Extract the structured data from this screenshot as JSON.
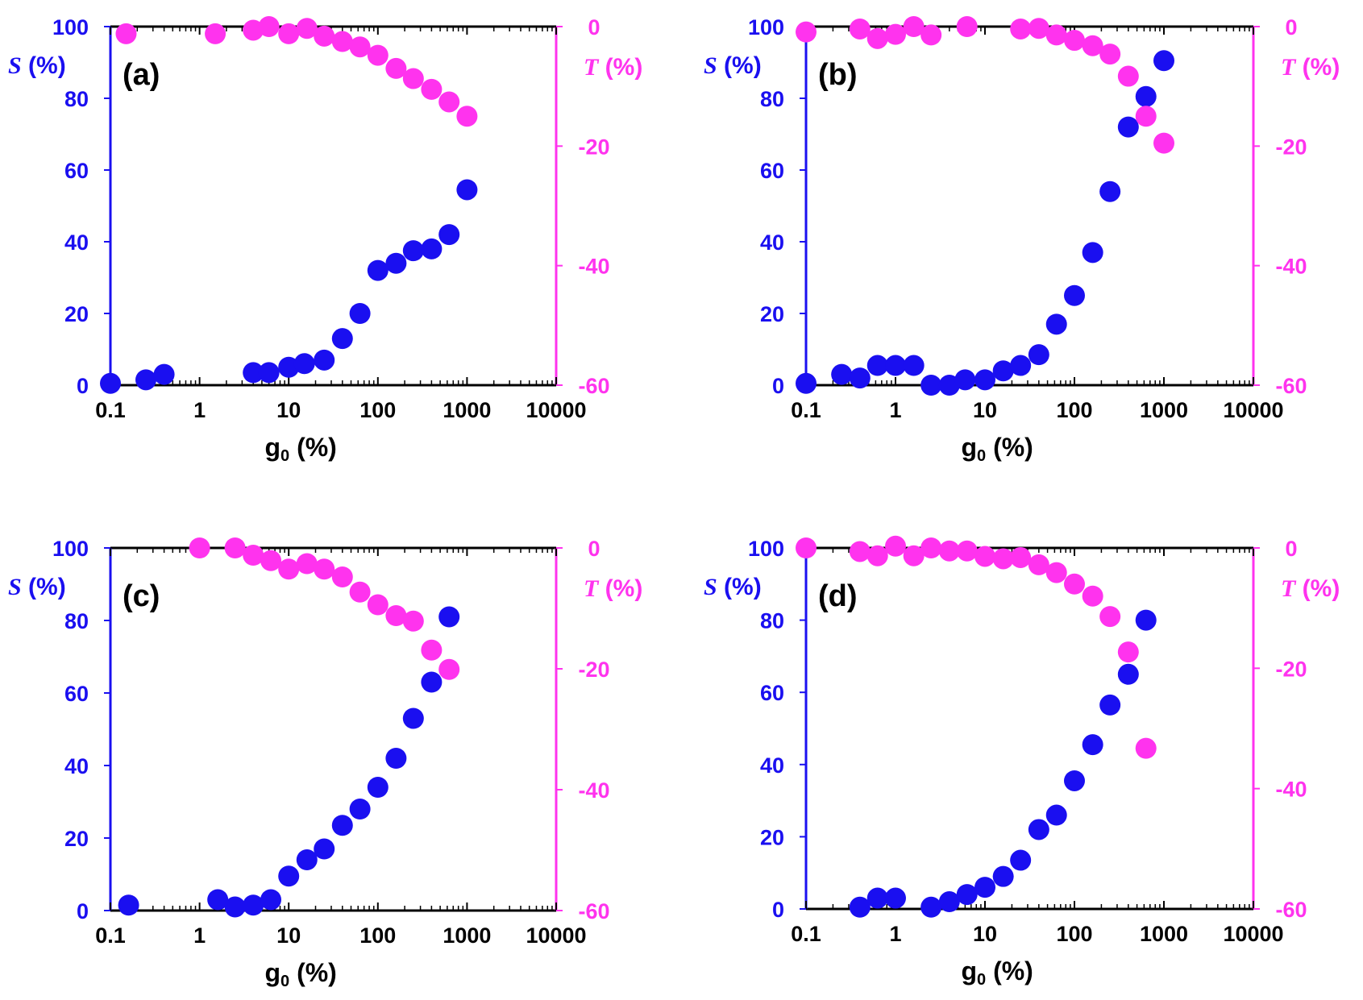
{
  "colors": {
    "s_series": "#1a0ff0",
    "t_series": "#ff33ee",
    "frame": "#000000"
  },
  "shared": {
    "x_ticks": [
      "0.1",
      "1",
      "10",
      "100",
      "1000",
      "10000"
    ],
    "s_ticks": [
      "0",
      "20",
      "40",
      "60",
      "80",
      "100"
    ],
    "t_ticks": [
      "-60",
      "-40",
      "-20",
      "0"
    ],
    "s_symbol": "S",
    "s_unit": " (%)",
    "t_symbol": "T",
    "t_unit": " (%)",
    "x_symbol": "g",
    "x_sub": "0",
    "x_unit": " (%)"
  },
  "chart_data": [
    {
      "type": "scatter",
      "panel_label": "(a)",
      "xscale": "log",
      "xlim": [
        0.1,
        10000
      ],
      "ylim_left": [
        0,
        100
      ],
      "ylim_right": [
        -60,
        0
      ],
      "series": [
        {
          "name": "S",
          "axis": "left",
          "x": [
            0.1,
            0.25,
            0.4,
            4,
            6,
            10,
            15,
            25,
            40,
            63,
            100,
            160,
            250,
            400,
            630,
            1000
          ],
          "values": [
            0.5,
            1.5,
            3,
            3.5,
            3.5,
            5,
            6,
            7,
            13,
            20,
            32,
            34,
            37.5,
            38,
            42,
            54.5
          ]
        },
        {
          "name": "T",
          "axis": "right",
          "x": [
            0.15,
            1.5,
            4,
            6,
            10,
            16,
            25,
            40,
            63,
            100,
            160,
            250,
            400,
            630,
            1000
          ],
          "values": [
            -1.2,
            -1.2,
            -0.6,
            0,
            -1.2,
            -0.3,
            -1.6,
            -2.5,
            -3.4,
            -4.8,
            -7,
            -8.7,
            -10.5,
            -12.6,
            -15
          ]
        }
      ]
    },
    {
      "type": "scatter",
      "panel_label": "(b)",
      "xscale": "log",
      "xlim": [
        0.1,
        10000
      ],
      "ylim_left": [
        0,
        100
      ],
      "ylim_right": [
        -60,
        0
      ],
      "series": [
        {
          "name": "S",
          "axis": "left",
          "x": [
            0.1,
            0.25,
            0.4,
            0.63,
            1,
            1.6,
            2.5,
            4,
            6,
            10,
            16,
            25,
            40,
            63,
            100,
            160,
            250,
            400,
            630,
            1000
          ],
          "values": [
            0.5,
            3,
            2,
            5.5,
            5.5,
            5.5,
            0,
            0,
            1.5,
            1.5,
            4,
            5.5,
            8.5,
            17,
            25,
            37,
            54,
            72,
            80.5,
            90.5
          ]
        },
        {
          "name": "T",
          "axis": "right",
          "x": [
            0.1,
            0.4,
            0.63,
            1,
            1.6,
            2.5,
            6.3,
            25,
            40,
            63,
            100,
            160,
            250,
            400,
            630,
            1000
          ],
          "values": [
            -0.9,
            -0.4,
            -2,
            -1.3,
            0,
            -1.4,
            0,
            -0.4,
            -0.3,
            -1.4,
            -2.3,
            -3.2,
            -4.6,
            -8.3,
            -15,
            -19.5
          ]
        }
      ]
    },
    {
      "type": "scatter",
      "panel_label": "(c)",
      "xscale": "log",
      "xlim": [
        0.1,
        10000
      ],
      "ylim_left": [
        0,
        100
      ],
      "ylim_right": [
        -60,
        0
      ],
      "series": [
        {
          "name": "S",
          "axis": "left",
          "x": [
            0.16,
            1.6,
            2.5,
            4,
            6.3,
            10,
            16,
            25,
            40,
            63,
            100,
            160,
            250,
            400,
            630
          ],
          "values": [
            1.5,
            3,
            1,
            1.5,
            3,
            9.5,
            14,
            17,
            23.5,
            28,
            34,
            42,
            53,
            63,
            81
          ]
        },
        {
          "name": "T",
          "axis": "right",
          "x": [
            1,
            2.5,
            4,
            6.3,
            10,
            16,
            25,
            40,
            63,
            100,
            160,
            250,
            400,
            630
          ],
          "values": [
            0,
            0,
            -1.2,
            -2.1,
            -3.5,
            -2.6,
            -3.5,
            -4.8,
            -7.3,
            -9.4,
            -11.2,
            -12.1,
            -16.9,
            -20.1
          ]
        }
      ]
    },
    {
      "type": "scatter",
      "panel_label": "(d)",
      "xscale": "log",
      "xlim": [
        0.1,
        10000
      ],
      "ylim_left": [
        0,
        100
      ],
      "ylim_right": [
        -60,
        0
      ],
      "series": [
        {
          "name": "S",
          "axis": "left",
          "x": [
            0.4,
            0.63,
            1,
            2.5,
            4,
            6.3,
            10,
            16,
            25,
            40,
            63,
            100,
            160,
            250,
            400,
            630
          ],
          "values": [
            0.5,
            3,
            3,
            0.5,
            2,
            4,
            6,
            9,
            13.5,
            22,
            26,
            35.5,
            45.5,
            56.5,
            65,
            80
          ]
        },
        {
          "name": "T",
          "axis": "right",
          "x": [
            0.1,
            0.4,
            0.63,
            1,
            1.6,
            2.5,
            4,
            6.3,
            10,
            16,
            25,
            40,
            63,
            100,
            160,
            250,
            400,
            630
          ],
          "values": [
            0,
            -0.6,
            -1.3,
            0.3,
            -1.3,
            0,
            -0.5,
            -0.5,
            -1.4,
            -1.8,
            -1.6,
            -2.8,
            -4.1,
            -6,
            -8,
            -11.4,
            -17.3,
            -33.3
          ]
        }
      ]
    }
  ]
}
